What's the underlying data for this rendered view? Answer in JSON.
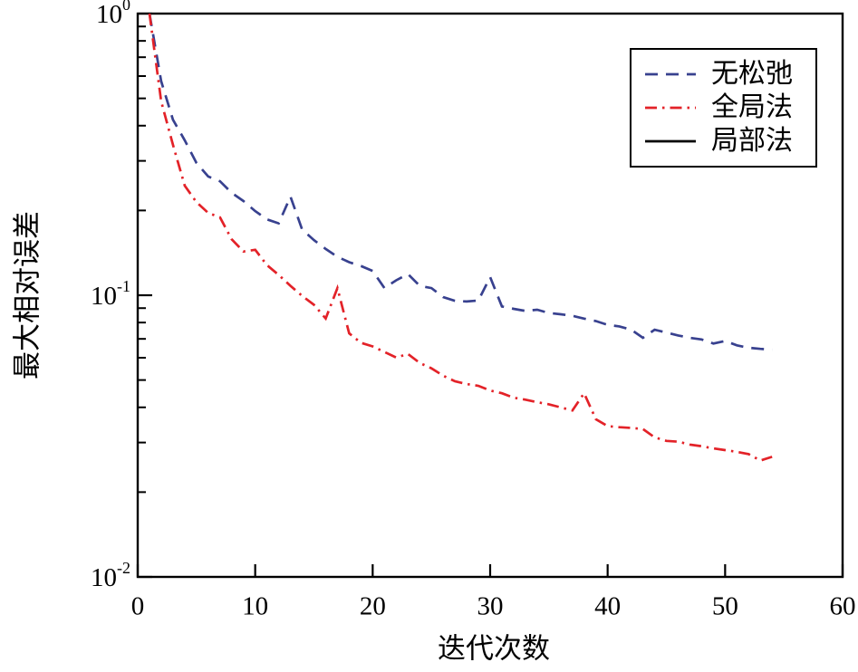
{
  "chart_data": {
    "type": "line",
    "title": "",
    "xlabel": "迭代次数",
    "ylabel": "最大相对误差",
    "x_range": [
      0,
      60
    ],
    "x_ticks": [
      0,
      10,
      20,
      30,
      40,
      50,
      60
    ],
    "y_scale": "log",
    "y_range": [
      0.01,
      1
    ],
    "y_ticks": [
      {
        "base": "10",
        "exp": "0",
        "value": 1
      },
      {
        "base": "10",
        "exp": "-1",
        "value": 0.1
      },
      {
        "base": "10",
        "exp": "-2",
        "value": 0.01
      }
    ],
    "grid": false,
    "legend_position": "top-right",
    "axis_color": "#000000",
    "x": [
      1,
      2,
      3,
      4,
      5,
      6,
      7,
      8,
      9,
      10,
      11,
      12,
      13,
      14,
      15,
      16,
      17,
      18,
      19,
      20,
      21,
      22,
      23,
      24,
      25,
      26,
      27,
      28,
      29,
      30,
      31,
      32,
      33,
      34,
      35,
      36,
      37,
      38,
      39,
      40,
      41,
      42,
      43,
      44,
      45,
      46,
      47,
      48,
      49,
      50,
      51,
      52,
      53,
      54
    ],
    "series": [
      {
        "name": "无松弛",
        "color": "#38418f",
        "style": "dashed",
        "y": [
          1.0,
          0.575,
          0.42,
          0.355,
          0.295,
          0.264,
          0.254,
          0.231,
          0.216,
          0.199,
          0.186,
          0.18,
          0.224,
          0.171,
          0.157,
          0.146,
          0.137,
          0.131,
          0.127,
          0.122,
          0.106,
          0.113,
          0.119,
          0.108,
          0.106,
          0.0985,
          0.0955,
          0.095,
          0.0958,
          0.116,
          0.0912,
          0.0895,
          0.088,
          0.0888,
          0.0865,
          0.0856,
          0.0845,
          0.0826,
          0.081,
          0.0785,
          0.0775,
          0.0755,
          0.0706,
          0.0754,
          0.0737,
          0.072,
          0.0706,
          0.0697,
          0.0674,
          0.0688,
          0.0664,
          0.0651,
          0.0645,
          0.0641
        ]
      },
      {
        "name": "全局法",
        "color": "#e32228",
        "style": "dashdot",
        "y": [
          1.0,
          0.488,
          0.342,
          0.245,
          0.214,
          0.196,
          0.189,
          0.158,
          0.143,
          0.145,
          0.128,
          0.118,
          0.108,
          0.0995,
          0.0925,
          0.0827,
          0.106,
          0.0732,
          0.0678,
          0.0658,
          0.0629,
          0.0601,
          0.0619,
          0.0575,
          0.055,
          0.0518,
          0.0495,
          0.0484,
          0.0477,
          0.0459,
          0.0449,
          0.0433,
          0.0426,
          0.0417,
          0.041,
          0.04,
          0.039,
          0.0449,
          0.0363,
          0.0343,
          0.034,
          0.0338,
          0.0335,
          0.0313,
          0.0304,
          0.0302,
          0.0295,
          0.0291,
          0.0286,
          0.0282,
          0.0278,
          0.0273,
          0.0259,
          0.0267
        ]
      },
      {
        "name": "局部法",
        "color": "#000000",
        "style": "solid",
        "x": [
          1
        ],
        "y": [
          1.0
        ]
      }
    ]
  }
}
